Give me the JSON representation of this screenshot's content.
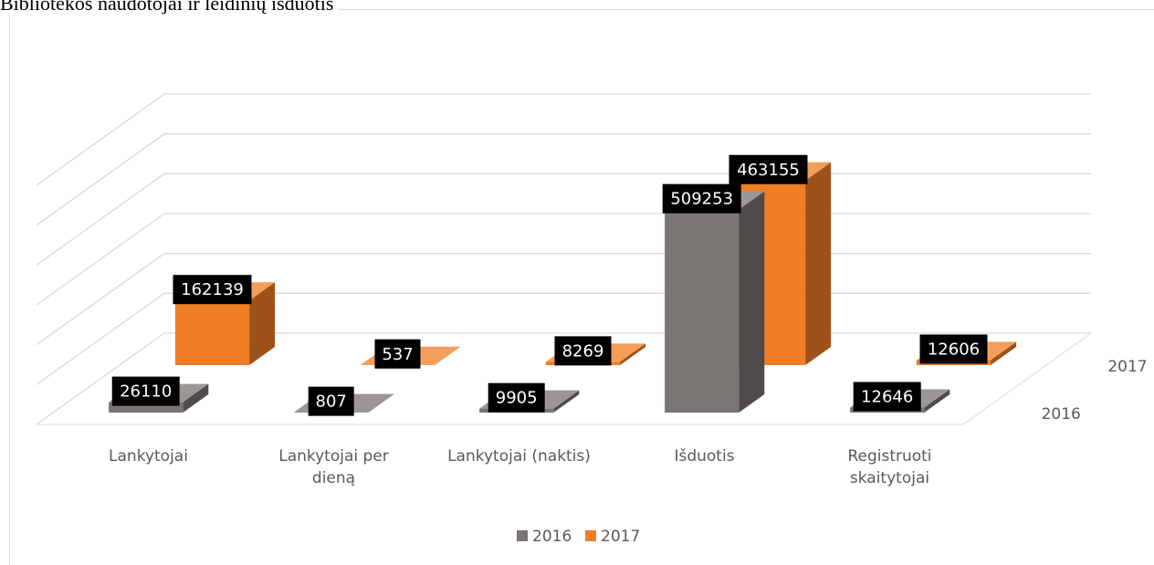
{
  "chart_data": {
    "type": "bar3d",
    "title": "Bibliotekos naudotojai ir leidinių išduotis",
    "categories": [
      "Lankytojai",
      "Lankytojai per dieną",
      "Lankytojai (naktis)",
      "Išduotis",
      "Registruoti skaitytojai"
    ],
    "series": [
      {
        "name": "2016",
        "color": "#7a7472",
        "values": [
          26110,
          807,
          9905,
          509253,
          12646
        ]
      },
      {
        "name": "2017",
        "color": "#f07e26",
        "values": [
          162139,
          537,
          8269,
          463155,
          12606
        ]
      }
    ],
    "ylim": [
      0,
      600000
    ],
    "yticks": [
      0,
      100000,
      200000,
      300000,
      400000,
      500000,
      600000
    ],
    "grid": true,
    "legend": "bottom"
  }
}
